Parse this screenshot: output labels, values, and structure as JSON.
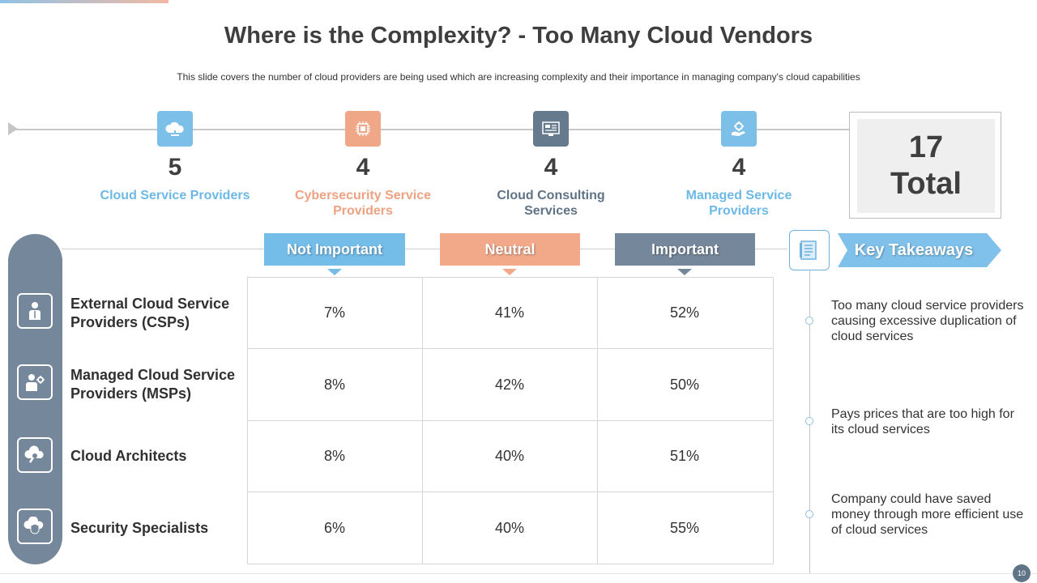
{
  "title": "Where is the Complexity? - Too Many Cloud Vendors",
  "subtitle": "This slide covers the number of cloud providers  are being used which are increasing complexity and their importance in managing company's cloud capabilities",
  "categories": [
    {
      "count": "5",
      "label": "Cloud Service Providers",
      "color": "#6cb8e6",
      "icon": "cloud-icon"
    },
    {
      "count": "4",
      "label": "Cybersecurity Service Providers",
      "color": "#eda282",
      "icon": "chip-icon"
    },
    {
      "count": "4",
      "label": "Cloud Consulting Services",
      "color": "#5f7386",
      "icon": "dashboard-icon"
    },
    {
      "count": "4",
      "label": "Managed Service Providers",
      "color": "#6cb8e6",
      "icon": "hand-gear-icon"
    }
  ],
  "total": {
    "number": "17",
    "label": "Total"
  },
  "table": {
    "headers": [
      {
        "label": "Not Important",
        "color": "#74bde9"
      },
      {
        "label": "Neutral",
        "color": "#f1a98a"
      },
      {
        "label": "Important",
        "color": "#75879a"
      }
    ],
    "rows": [
      {
        "label": "External Cloud Service Providers (CSPs)",
        "icon": "person-icon",
        "values": [
          "7%",
          "41%",
          "52%"
        ]
      },
      {
        "label": "Managed Cloud Service Providers (MSPs)",
        "icon": "person-gear-icon",
        "values": [
          "8%",
          "42%",
          "50%"
        ]
      },
      {
        "label": "Cloud Architects",
        "icon": "cloud-wrench-icon",
        "values": [
          "8%",
          "40%",
          "51%"
        ]
      },
      {
        "label": "Security Specialists",
        "icon": "cloud-shield-icon",
        "values": [
          "6%",
          "40%",
          "55%"
        ]
      }
    ]
  },
  "takeaways": {
    "title": "Key Takeaways",
    "items": [
      "Too many cloud service providers causing excessive duplication of cloud services",
      "Pays prices that are too high for its cloud services",
      "Company could have saved money through  more efficient use of cloud services"
    ]
  },
  "page_number": "10"
}
